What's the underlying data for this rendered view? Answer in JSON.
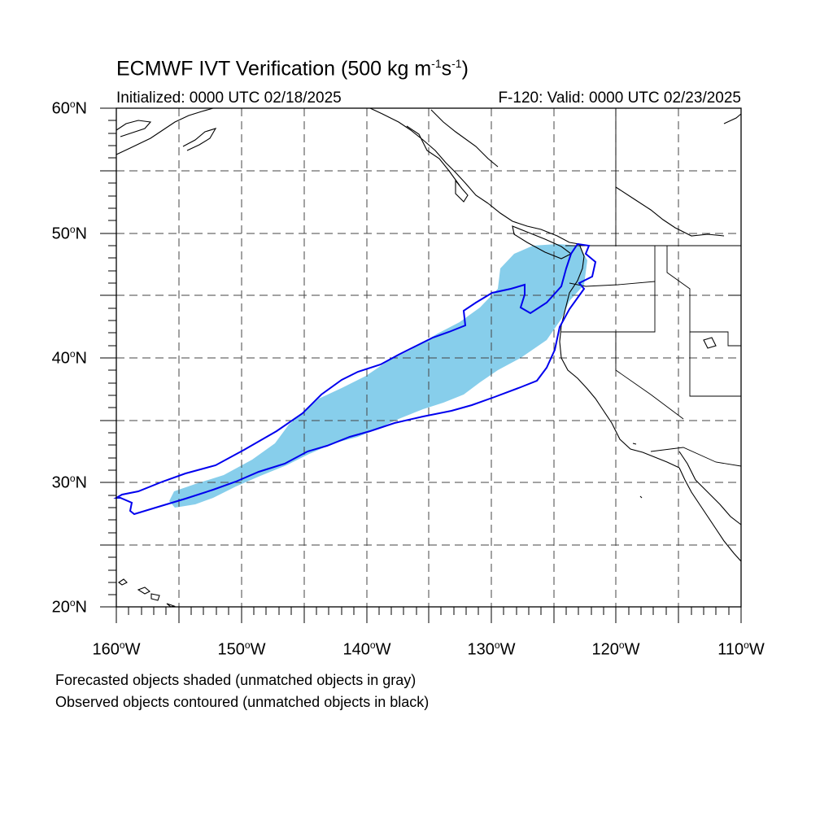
{
  "title": {
    "main": "ECMWF IVT Verification (500 kg m",
    "exp1": "-1",
    "mid": "s",
    "exp2": "-1",
    "end": ")"
  },
  "subtitle": {
    "initialized": "Initialized: 0000 UTC 02/18/2025",
    "valid": "F-120: Valid: 0000 UTC 02/23/2025"
  },
  "axes": {
    "lat_labels": [
      {
        "num": "60",
        "deg": "o",
        "hem": "N"
      },
      {
        "num": "50",
        "deg": "o",
        "hem": "N"
      },
      {
        "num": "40",
        "deg": "o",
        "hem": "N"
      },
      {
        "num": "30",
        "deg": "o",
        "hem": "N"
      },
      {
        "num": "20",
        "deg": "o",
        "hem": "N"
      }
    ],
    "lon_labels": [
      {
        "num": "160",
        "deg": "o",
        "hem": "W"
      },
      {
        "num": "150",
        "deg": "o",
        "hem": "W"
      },
      {
        "num": "140",
        "deg": "o",
        "hem": "W"
      },
      {
        "num": "130",
        "deg": "o",
        "hem": "W"
      },
      {
        "num": "120",
        "deg": "o",
        "hem": "W"
      },
      {
        "num": "110",
        "deg": "o",
        "hem": "W"
      }
    ],
    "lat_range": [
      20,
      60
    ],
    "lon_range": [
      -160,
      -110
    ],
    "grid_interval_deg": 5,
    "grid_style": "dashed"
  },
  "legend_notes": {
    "forecast": "Forecasted objects shaded (unmatched objects in gray)",
    "observed": "Observed objects contoured (unmatched objects in black)"
  },
  "colors": {
    "forecast_fill": "#87ceeb",
    "observed_contour": "#0000ee",
    "coastline": "#000000",
    "grid": "#444444"
  }
}
